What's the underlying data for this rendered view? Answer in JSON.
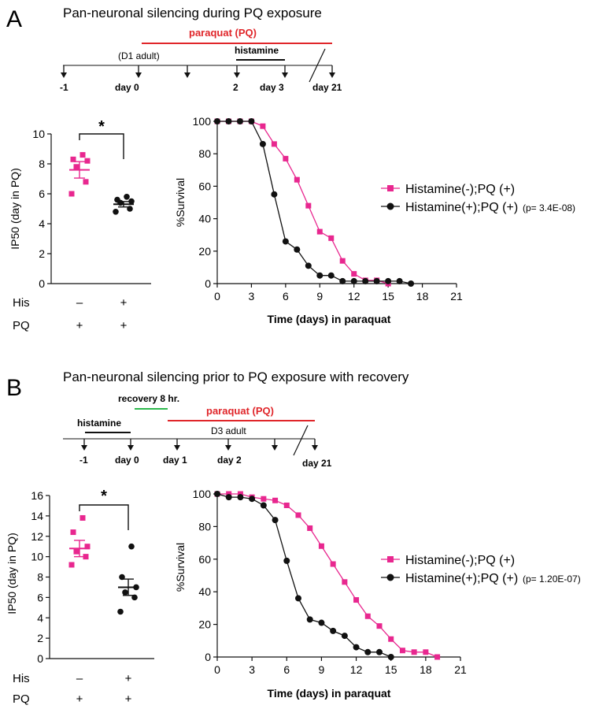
{
  "colors": {
    "pink": "#e8278f",
    "black": "#111111",
    "red": "#e0262a",
    "green": "#2db84d"
  },
  "panels": [
    {
      "label": "A",
      "title": "Pan-neuronal silencing during PQ exposure",
      "timeline": {
        "paraquat_label": "paraquat (PQ)",
        "histamine_label": "histamine",
        "adult_label": "(D1 adult)",
        "ticks": [
          "-1",
          "day 0",
          "",
          "2",
          "day 3",
          "day 21"
        ]
      },
      "ip50": {
        "ylabel": "IP50 (day in PQ)",
        "yticks": [
          "0",
          "2",
          "4",
          "6",
          "8",
          "10"
        ],
        "ymax": 10,
        "significance": "*",
        "row_labels": [
          "His",
          "PQ"
        ],
        "his_values": [
          "–",
          "+"
        ],
        "pq_values": [
          "+",
          "+"
        ],
        "groups": [
          {
            "name": "Histamine(-)",
            "points": [
              6.0,
              6.8,
              7.8,
              8.2,
              8.3,
              8.6
            ],
            "mean": 7.6,
            "sem": 0.55
          },
          {
            "name": "Histamine(+)",
            "points": [
              4.8,
              5.0,
              5.4,
              5.5,
              5.6,
              5.8
            ],
            "mean": 5.3,
            "sem": 0.18
          }
        ]
      },
      "legend": {
        "series1": "Histamine(-);PQ (+)",
        "series2": "Histamine(+);PQ (+)",
        "pvalue": "(p= 3.4E-08)"
      },
      "chart_data": {
        "type": "line",
        "title": "",
        "xlabel": "Time (days) in paraquat",
        "ylabel": "%Survival",
        "xlim": [
          0,
          21
        ],
        "ylim": [
          0,
          100
        ],
        "xticks": [
          "0",
          "3",
          "6",
          "9",
          "12",
          "15",
          "18",
          "21"
        ],
        "yticks": [
          "0",
          "20",
          "40",
          "60",
          "80",
          "100"
        ],
        "series": [
          {
            "name": "Histamine(-);PQ (+)",
            "x": [
              0,
              1,
              2,
              3,
              4,
              5,
              6,
              7,
              8,
              9,
              10,
              11,
              12,
              13,
              14,
              15
            ],
            "y": [
              100,
              100,
              100,
              100,
              97,
              86,
              77,
              64,
              48,
              32,
              28,
              14,
              6,
              2,
              2,
              0
            ]
          },
          {
            "name": "Histamine(+);PQ (+)",
            "x": [
              0,
              1,
              2,
              3,
              4,
              5,
              6,
              7,
              8,
              9,
              10,
              11,
              12,
              13,
              14,
              15,
              16,
              17
            ],
            "y": [
              100,
              100,
              100,
              100,
              86,
              55,
              26,
              21,
              11,
              5,
              5,
              1.5,
              1.5,
              1.5,
              1.5,
              1.5,
              1.5,
              0
            ]
          }
        ]
      }
    },
    {
      "label": "B",
      "title": "Pan-neuronal silencing prior to PQ exposure with recovery",
      "timeline": {
        "paraquat_label": "paraquat (PQ)",
        "histamine_label": "histamine",
        "recovery_label": "recovery 8 hr.",
        "adult_label": "D3 adult",
        "ticks": [
          "-1",
          "day 0",
          "day 1",
          "day 2",
          "",
          "day 21"
        ]
      },
      "ip50": {
        "ylabel": "IP50 (day in PQ)",
        "yticks": [
          "0",
          "2",
          "4",
          "6",
          "8",
          "10",
          "12",
          "14",
          "16"
        ],
        "ymax": 16,
        "significance": "*",
        "row_labels": [
          "His",
          "PQ"
        ],
        "his_values": [
          "–",
          "+"
        ],
        "pq_values": [
          "+",
          "+"
        ],
        "groups": [
          {
            "name": "Histamine(-)",
            "points": [
              9.2,
              10.0,
              10.5,
              11.0,
              12.4,
              13.8
            ],
            "mean": 10.8,
            "sem": 0.8
          },
          {
            "name": "Histamine(+)",
            "points": [
              4.6,
              6.0,
              6.5,
              7.0,
              8.0,
              11.0
            ],
            "mean": 7.0,
            "sem": 0.8
          }
        ]
      },
      "legend": {
        "series1": "Histamine(-);PQ (+)",
        "series2": "Histamine(+);PQ (+)",
        "pvalue": "(p= 1.20E-07)"
      },
      "chart_data": {
        "type": "line",
        "title": "",
        "xlabel": "Time (days) in paraquat",
        "ylabel": "%Survival",
        "xlim": [
          0,
          21
        ],
        "ylim": [
          0,
          100
        ],
        "xticks": [
          "0",
          "3",
          "6",
          "9",
          "12",
          "15",
          "18",
          "21"
        ],
        "yticks": [
          "0",
          "20",
          "40",
          "60",
          "80",
          "100"
        ],
        "series": [
          {
            "name": "Histamine(-);PQ (+)",
            "x": [
              0,
              1,
              2,
              3,
              4,
              5,
              6,
              7,
              8,
              9,
              10,
              11,
              12,
              13,
              14,
              15,
              16,
              17,
              18,
              19
            ],
            "y": [
              100,
              100,
              100,
              98,
              97,
              96,
              93,
              87,
              79,
              68,
              57,
              46,
              35,
              25,
              19,
              11,
              4,
              3,
              3,
              0
            ]
          },
          {
            "name": "Histamine(+);PQ (+)",
            "x": [
              0,
              1,
              2,
              3,
              4,
              5,
              6,
              7,
              8,
              9,
              10,
              11,
              12,
              13,
              14,
              15
            ],
            "y": [
              100,
              98,
              98,
              97,
              93,
              84,
              59,
              36,
              23,
              21,
              16,
              13,
              6,
              3,
              3,
              0
            ]
          }
        ]
      }
    }
  ]
}
